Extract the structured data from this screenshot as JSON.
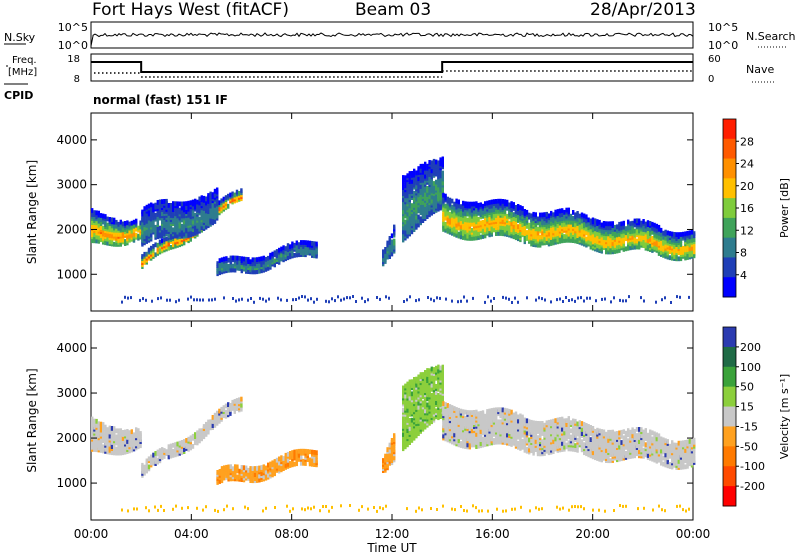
{
  "header": {
    "station": "Fort Hays West (fitACF)",
    "beam": "Beam 03",
    "date": "28/Apr/2013"
  },
  "top_panel": {
    "left_label": "N.Sky",
    "left_ticks": [
      "10^5",
      "10^0"
    ],
    "right_label": "N.Search",
    "right_ticks": [
      "10^5",
      "10^0"
    ]
  },
  "freq_panel": {
    "left_label_line1": "Freq.",
    "left_label_line2": "[MHz]",
    "left_ticks": [
      "18",
      "8"
    ],
    "right_label": "Nave",
    "right_ticks": [
      "60",
      "0"
    ],
    "cpid_label": "CPID",
    "mode_text": "normal (fast) 151 IF"
  },
  "chart_data": [
    {
      "type": "heatmap",
      "title": "",
      "xlabel": "Time UT",
      "ylabel": "Slant Range [km]",
      "x_ticks": [
        "00:00",
        "04:00",
        "08:00",
        "12:00",
        "16:00",
        "20:00",
        "00:00"
      ],
      "x_range_hours": [
        0,
        24
      ],
      "y_ticks": [
        1000,
        2000,
        3000,
        4000
      ],
      "ylim": [
        180,
        4600
      ],
      "colorbar_label": "Power [dB]",
      "colorbar_ticks": [
        4,
        8,
        12,
        16,
        20,
        24,
        28
      ],
      "colorbar_range": [
        0,
        32
      ],
      "colors": [
        "#0000ff",
        "#1f3fb7",
        "#2e7c8e",
        "#3fa35a",
        "#7fcc3c",
        "#ffc000",
        "#ff9000",
        "#ff5a00",
        "#ff1e00"
      ],
      "regions": [
        {
          "name": "early-band",
          "t": [
            0.0,
            2.0
          ],
          "r_lo": [
            1620,
            1780
          ],
          "r_hi": [
            2300,
            2150
          ],
          "peak": 22
        },
        {
          "name": "rising-band",
          "t": [
            2.0,
            6.0
          ],
          "r_lo": [
            1100,
            2600
          ],
          "r_hi": [
            1350,
            2850
          ],
          "peak": 24
        },
        {
          "name": "scatter-cloud",
          "t": [
            2.0,
            5.0
          ],
          "r_lo": [
            1600,
            2100
          ],
          "r_hi": [
            2400,
            2800
          ],
          "peak": 8
        },
        {
          "name": "mid-patch",
          "t": [
            5.0,
            9.0
          ],
          "r_lo": [
            900,
            1400
          ],
          "r_hi": [
            1200,
            1700
          ],
          "peak": 8
        },
        {
          "name": "spike-1",
          "t": [
            11.6,
            12.1
          ],
          "r_lo": [
            1200,
            1600
          ],
          "r_hi": [
            1500,
            2200
          ],
          "peak": 10
        },
        {
          "name": "spike-2",
          "t": [
            12.4,
            14.0
          ],
          "r_lo": [
            1800,
            2400
          ],
          "r_hi": [
            3200,
            3500
          ],
          "peak": 10
        },
        {
          "name": "late-band",
          "t": [
            14.0,
            24.0
          ],
          "r_lo": [
            1900,
            1350
          ],
          "r_hi": [
            2700,
            1900
          ],
          "peak": 20
        }
      ]
    },
    {
      "type": "heatmap",
      "title": "",
      "xlabel": "Time UT",
      "ylabel": "Slant Range [km]",
      "x_ticks": [
        "00:00",
        "04:00",
        "08:00",
        "12:00",
        "16:00",
        "20:00",
        "00:00"
      ],
      "x_range_hours": [
        0,
        24
      ],
      "y_ticks": [
        1000,
        2000,
        3000,
        4000
      ],
      "ylim": [
        180,
        4600
      ],
      "colorbar_label": "Velocity [m s⁻¹]",
      "colorbar_ticks": [
        200,
        100,
        50,
        15,
        -15,
        -50,
        -100,
        -200
      ],
      "colors": [
        "#2b3bb0",
        "#1f6b46",
        "#3aa23a",
        "#8ccf3c",
        "#c8c8c8",
        "#ffa11f",
        "#ff7a00",
        "#ff4a00",
        "#ff0000"
      ],
      "regions": [
        {
          "name": "early-band",
          "t": [
            0.0,
            2.0
          ],
          "r_lo": [
            1620,
            1780
          ],
          "r_hi": [
            2300,
            2150
          ],
          "class": "gray"
        },
        {
          "name": "rising-band",
          "t": [
            2.0,
            6.0
          ],
          "r_lo": [
            1100,
            2600
          ],
          "r_hi": [
            1350,
            2850
          ],
          "class": "gray"
        },
        {
          "name": "mid-patch",
          "t": [
            5.0,
            9.0
          ],
          "r_lo": [
            900,
            1400
          ],
          "r_hi": [
            1200,
            1700
          ],
          "class": "orange"
        },
        {
          "name": "spike-1",
          "t": [
            11.6,
            12.1
          ],
          "r_lo": [
            1200,
            1600
          ],
          "r_hi": [
            1500,
            2200
          ],
          "class": "orange"
        },
        {
          "name": "spike-2",
          "t": [
            12.4,
            14.0
          ],
          "r_lo": [
            1800,
            2400
          ],
          "r_hi": [
            3200,
            3500
          ],
          "class": "green"
        },
        {
          "name": "late-band",
          "t": [
            14.0,
            24.0
          ],
          "r_lo": [
            1900,
            1350
          ],
          "r_hi": [
            2700,
            1900
          ],
          "class": "gray"
        }
      ]
    }
  ]
}
